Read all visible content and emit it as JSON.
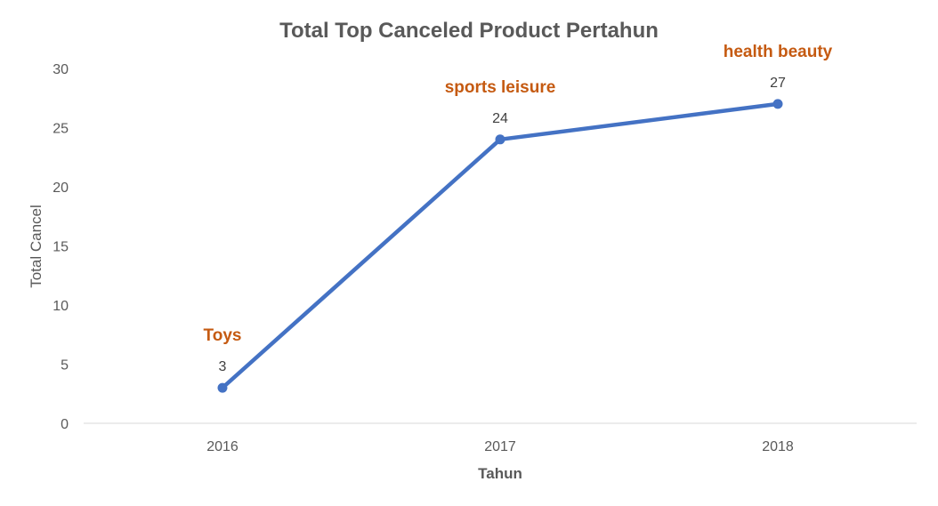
{
  "chart_data": {
    "type": "line",
    "title": "Total Top Canceled Product Pertahun",
    "xlabel": "Tahun",
    "ylabel": "Total Cancel",
    "categories": [
      "2016",
      "2017",
      "2018"
    ],
    "series": [
      {
        "values": [
          3,
          24,
          27
        ]
      }
    ],
    "annotations": [
      "Toys",
      "sports leisure",
      "health beauty"
    ],
    "ylim": [
      0,
      30
    ],
    "yticks": [
      "0",
      "5",
      "10",
      "15",
      "20",
      "25",
      "30"
    ],
    "grid": false,
    "legend": "none",
    "colors": {
      "line": "#4472C4",
      "annotation": "#C55A11",
      "axis": "#D9D9D9"
    }
  }
}
